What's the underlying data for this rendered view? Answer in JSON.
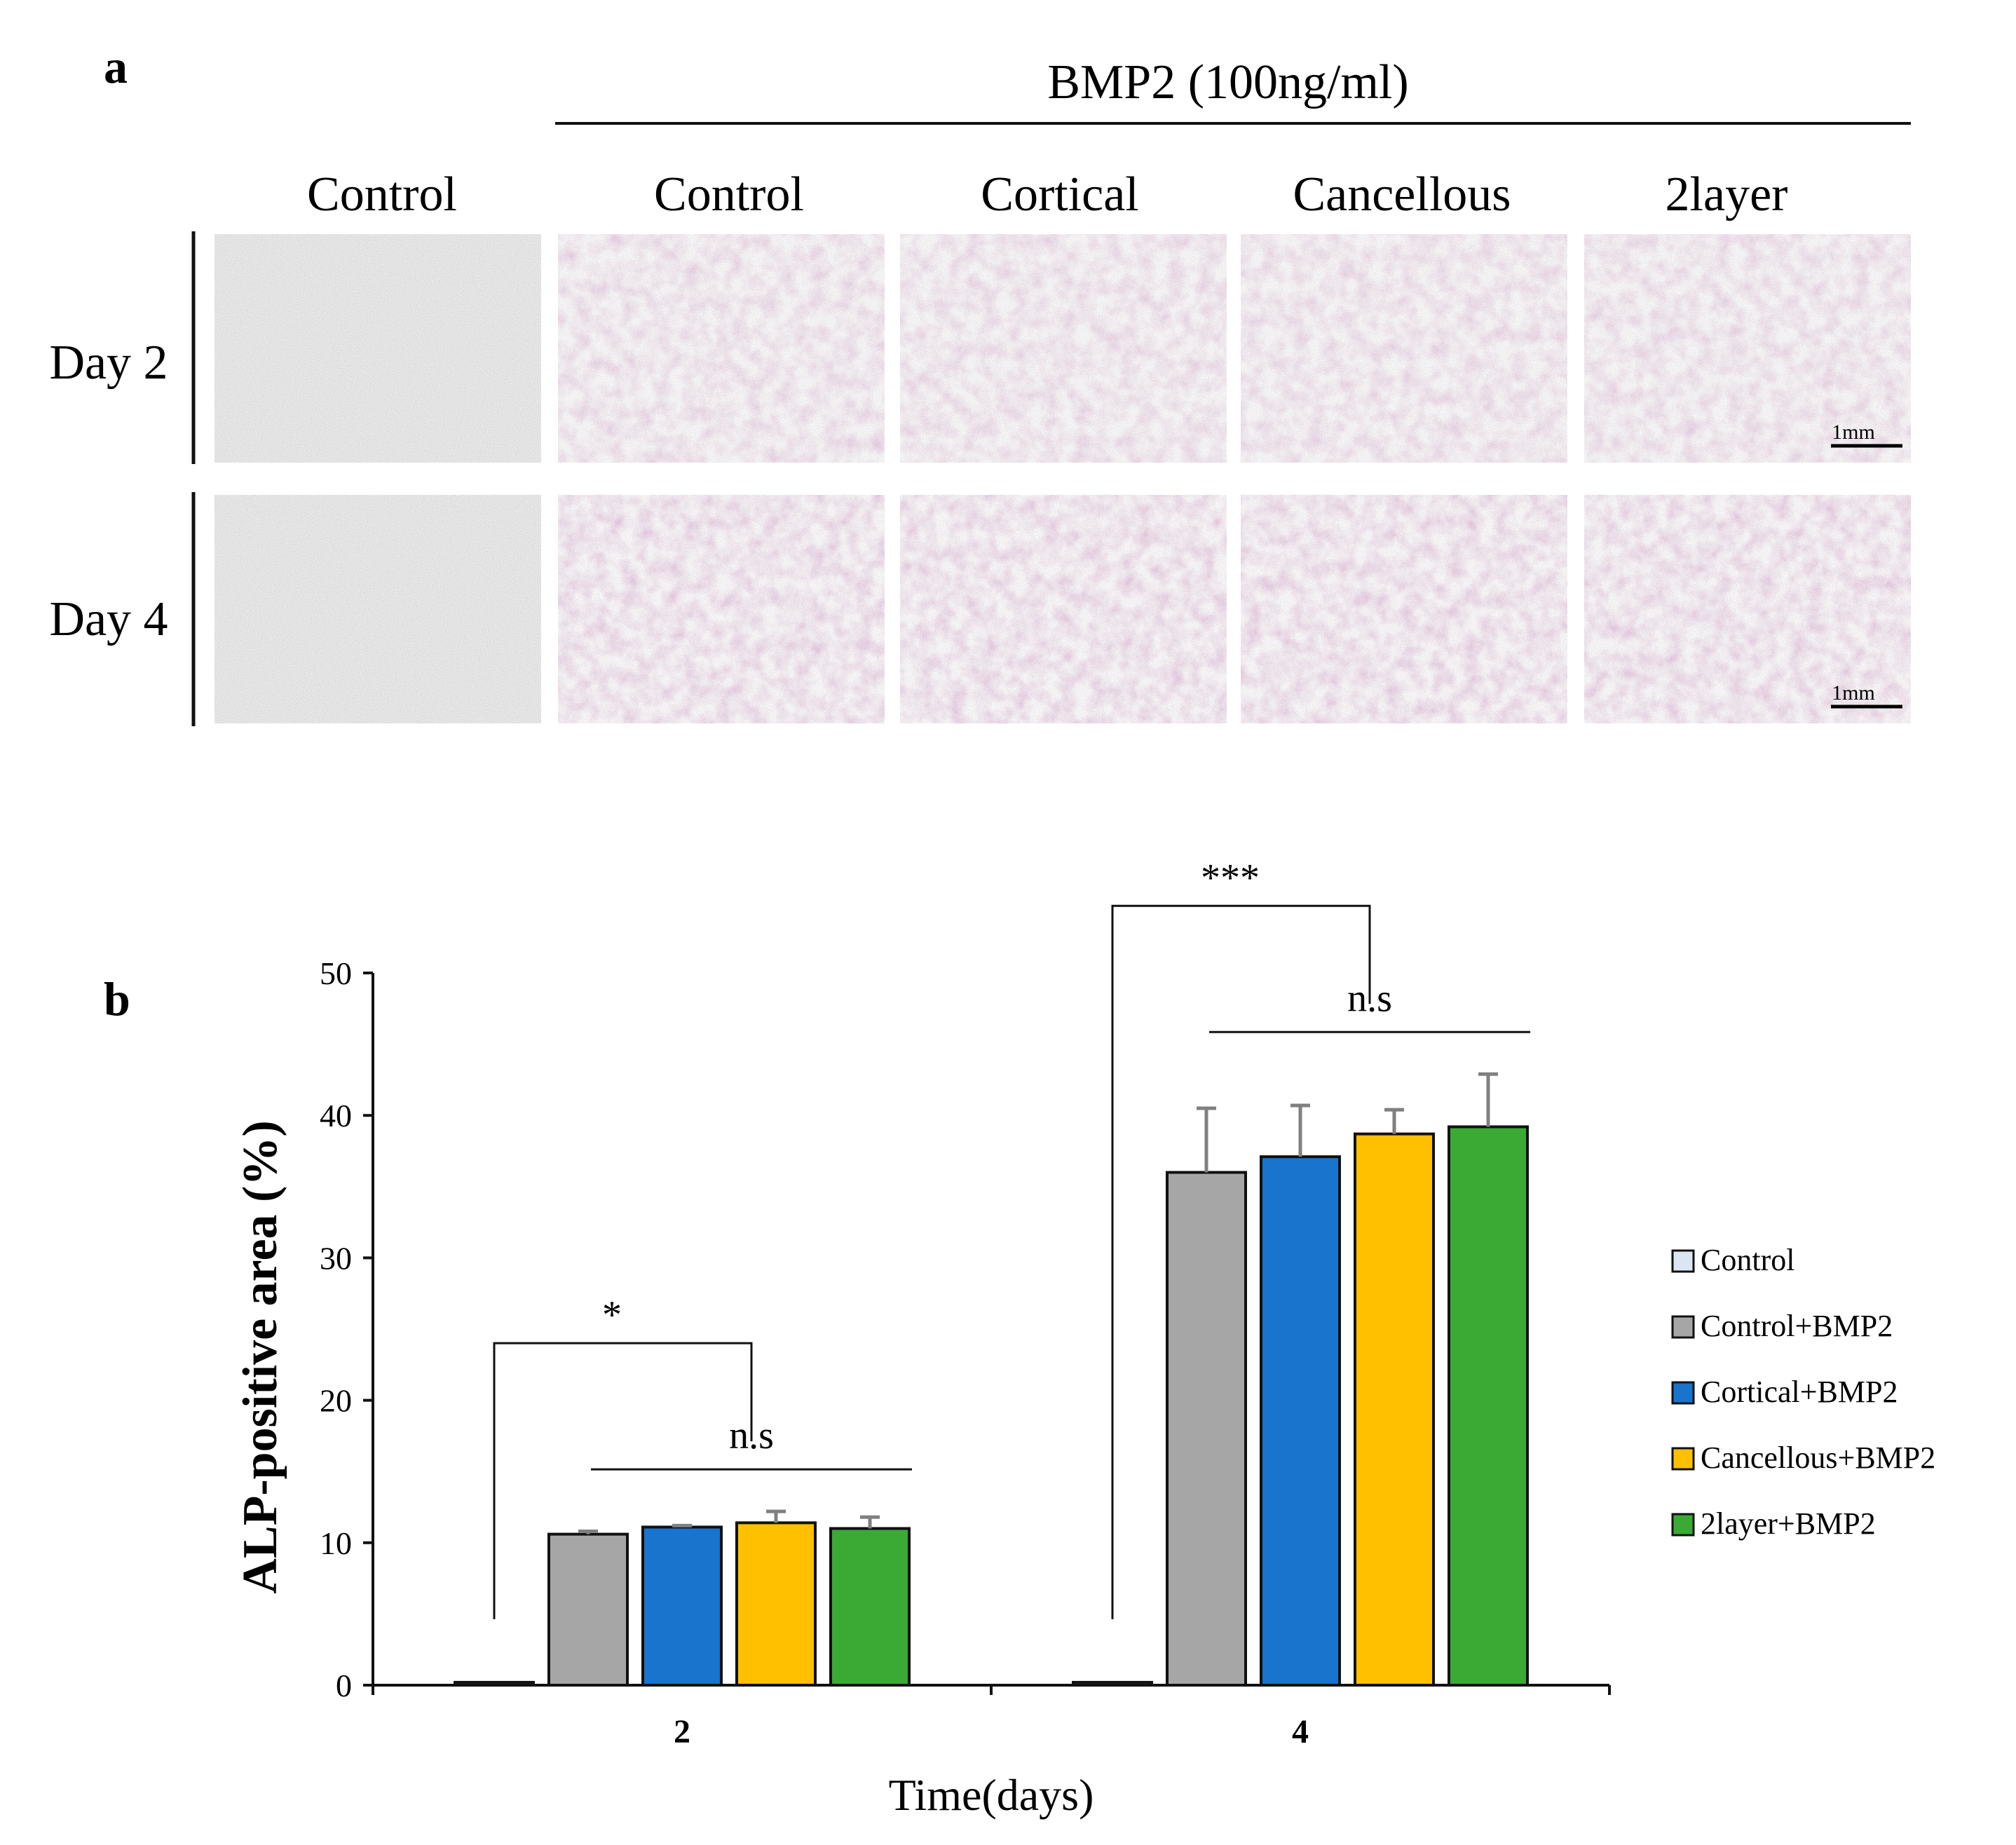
{
  "panel_a": {
    "label": "a",
    "treatment_header": "BMP2 (100ng/ml)",
    "columns": [
      "Control",
      "Control",
      "Cortical",
      "Cancellous",
      "2layer"
    ],
    "rows": [
      "Day 2",
      "Day 4"
    ],
    "scale_bar": "1mm",
    "stain_color": "#a4458e",
    "control_color": "#9b9b9b"
  },
  "panel_b": {
    "label": "b",
    "chart_data": {
      "type": "bar",
      "categories": [
        "2",
        "4"
      ],
      "xlabel": "Time(days)",
      "ylabel": "ALP-positive area (%)",
      "ylim": [
        0,
        50
      ],
      "yticks": [
        0,
        10,
        20,
        30,
        40,
        50
      ],
      "legend_position": "right",
      "series": [
        {
          "name": "Control",
          "color": "#dce6f2",
          "values": [
            0.2,
            0.2
          ],
          "errors": [
            0,
            0
          ]
        },
        {
          "name": "Control+BMP2",
          "color": "#a6a6a6",
          "values": [
            10.6,
            36.0
          ],
          "errors": [
            0.2,
            4.5
          ]
        },
        {
          "name": "Cortical+BMP2",
          "color": "#1874cd",
          "values": [
            11.1,
            37.1
          ],
          "errors": [
            0.1,
            3.6
          ]
        },
        {
          "name": "Cancellous+BMP2",
          "color": "#ffc000",
          "values": [
            11.4,
            38.7
          ],
          "errors": [
            0.8,
            1.7
          ]
        },
        {
          "name": "2layer+BMP2",
          "color": "#3aaa35",
          "values": [
            11.0,
            39.2
          ],
          "errors": [
            0.8,
            3.7
          ]
        }
      ],
      "annotations": [
        {
          "text": "*",
          "group": 0,
          "type": "control-vs-bmp2"
        },
        {
          "text": "n.s",
          "group": 0,
          "type": "among-bmp2"
        },
        {
          "text": "***",
          "group": 1,
          "type": "control-vs-bmp2"
        },
        {
          "text": "n.s",
          "group": 1,
          "type": "among-bmp2"
        }
      ]
    }
  }
}
